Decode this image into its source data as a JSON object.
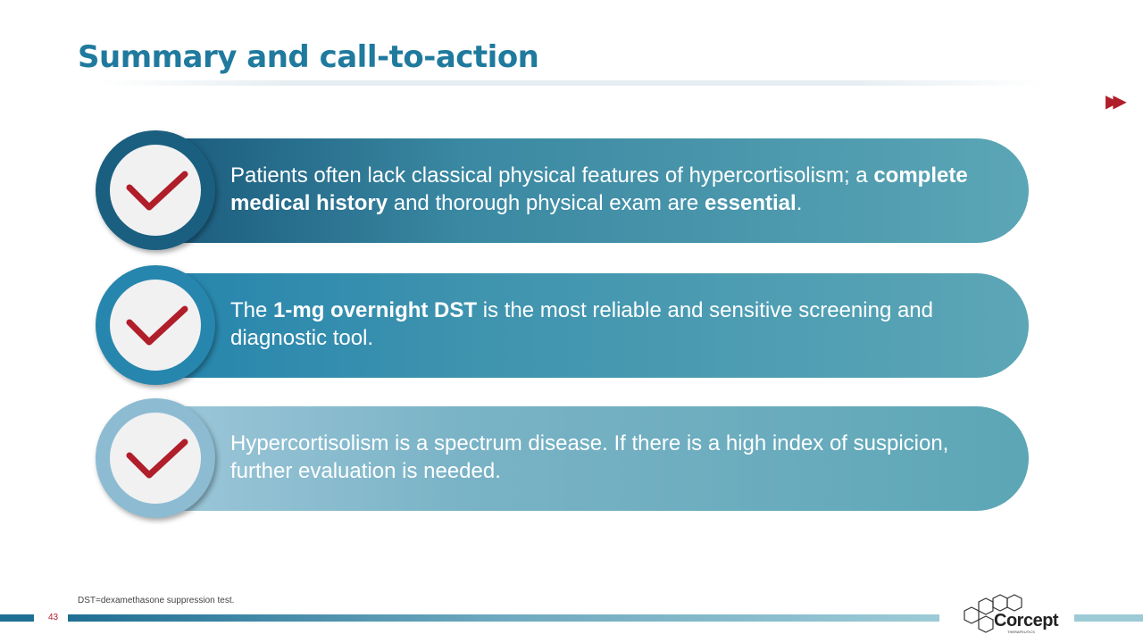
{
  "title": "Summary and call-to-action",
  "next_icon": "double-chevron-right-icon",
  "colors": {
    "title": "#1f7a9e",
    "check": "#b01e2a",
    "accent": "#5ba6b6"
  },
  "items": [
    {
      "icon": "checkmark-icon",
      "segments": [
        {
          "text": "Patients often lack classical physical features of hypercortisolism; a ",
          "bold": false
        },
        {
          "text": "complete medical history",
          "bold": true
        },
        {
          "text": " and thorough physical exam are ",
          "bold": false
        },
        {
          "text": "essential",
          "bold": true
        },
        {
          "text": ".",
          "bold": false
        }
      ]
    },
    {
      "icon": "checkmark-icon",
      "segments": [
        {
          "text": "The ",
          "bold": false
        },
        {
          "text": "1-mg overnight DST",
          "bold": true
        },
        {
          "text": " is the most reliable and sensitive screening and diagnostic tool.",
          "bold": false
        }
      ]
    },
    {
      "icon": "checkmark-icon",
      "segments": [
        {
          "text": "Hypercortisolism is a spectrum disease. If there is a high index of suspicion, further evaluation is needed.",
          "bold": false
        }
      ]
    }
  ],
  "footnote": "DST=dexamethasone suppression test.",
  "page_number": "43",
  "logo": {
    "name": "Corcept",
    "sub": "THERAPEUTICS"
  }
}
